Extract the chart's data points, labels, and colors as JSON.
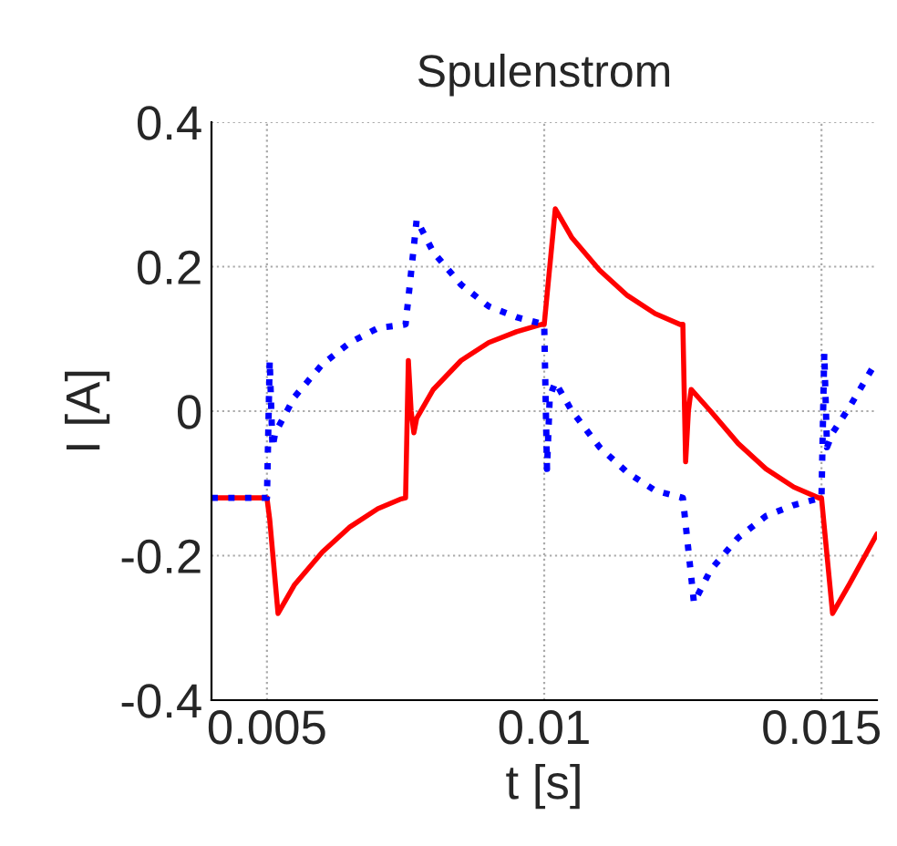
{
  "chart_data": {
    "type": "line",
    "title": "Spulenstrom",
    "xlabel": "t [s]",
    "ylabel": "I [A]",
    "xlim": [
      0.004,
      0.016
    ],
    "xticks": [
      0.005,
      0.01,
      0.015
    ],
    "ylim": [
      -0.4,
      0.4
    ],
    "yticks": [
      -0.4,
      -0.2,
      0,
      0.2,
      0.4
    ],
    "grid": true,
    "series": [
      {
        "color": "#ff0000",
        "line_style": "solid",
        "x": [
          0.004,
          0.005,
          0.00505,
          0.0052,
          0.0055,
          0.006,
          0.0065,
          0.007,
          0.0074,
          0.0075,
          0.00755,
          0.0076,
          0.00765,
          0.0077,
          0.008,
          0.0085,
          0.009,
          0.0095,
          0.00995,
          0.01,
          0.0102,
          0.0105,
          0.011,
          0.0115,
          0.012,
          0.01245,
          0.0125,
          0.01255,
          0.0126,
          0.01265,
          0.013,
          0.0135,
          0.014,
          0.0145,
          0.01495,
          0.015,
          0.0152,
          0.0155,
          0.016
        ],
        "values": [
          -0.12,
          -0.12,
          -0.15,
          -0.28,
          -0.24,
          -0.195,
          -0.16,
          -0.135,
          -0.122,
          -0.12,
          0.07,
          0.0,
          -0.03,
          -0.01,
          0.03,
          0.07,
          0.095,
          0.11,
          0.12,
          0.12,
          0.28,
          0.24,
          0.195,
          0.16,
          0.135,
          0.12,
          0.12,
          -0.07,
          0.0,
          0.03,
          0.0,
          -0.045,
          -0.08,
          -0.105,
          -0.12,
          -0.12,
          -0.28,
          -0.24,
          -0.17
        ]
      },
      {
        "color": "#0000ff",
        "line_style": "dotted",
        "x": [
          0.004,
          0.005,
          0.00505,
          0.0051,
          0.00515,
          0.0055,
          0.006,
          0.0065,
          0.007,
          0.0075,
          0.0077,
          0.008,
          0.0085,
          0.009,
          0.0095,
          0.01,
          0.01005,
          0.0101,
          0.0102,
          0.0105,
          0.011,
          0.0115,
          0.012,
          0.0125,
          0.0127,
          0.013,
          0.0135,
          0.014,
          0.0145,
          0.015,
          0.01505,
          0.0151,
          0.0152,
          0.0155,
          0.016
        ],
        "values": [
          -0.12,
          -0.12,
          0.07,
          -0.05,
          -0.03,
          0.02,
          0.065,
          0.095,
          0.115,
          0.12,
          0.265,
          0.22,
          0.175,
          0.145,
          0.13,
          0.12,
          -0.08,
          0.02,
          0.04,
          0.0,
          -0.05,
          -0.085,
          -0.11,
          -0.12,
          -0.265,
          -0.22,
          -0.175,
          -0.145,
          -0.13,
          -0.12,
          0.08,
          -0.05,
          -0.03,
          0.005,
          0.07
        ]
      }
    ]
  }
}
